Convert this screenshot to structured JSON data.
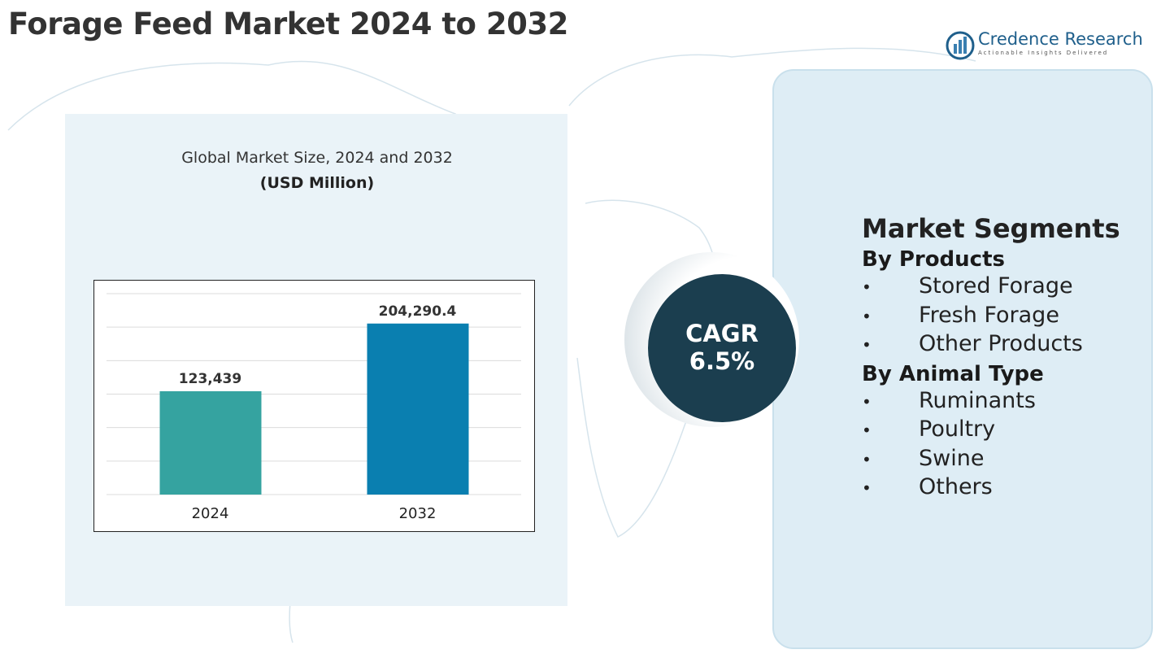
{
  "header": {
    "title": "Forage Feed Market 2024 to 2032"
  },
  "logo": {
    "name": "Credence Research",
    "tagline": "Actionable Insights Delivered"
  },
  "chart_data": {
    "type": "bar",
    "title": "Global Market Size, 2024 and 2032",
    "subtitle": "(USD Million)",
    "categories": [
      "2024",
      "2032"
    ],
    "values": [
      123439,
      204290.4
    ],
    "value_labels": [
      "123,439",
      "204,290.4"
    ],
    "colors": [
      "#35a3a0",
      "#0a7fb0"
    ],
    "ylim": [
      0,
      240000
    ],
    "grid": true
  },
  "cagr": {
    "label": "CAGR",
    "value": "6.5%"
  },
  "segments": {
    "title": "Market Segments",
    "groups": [
      {
        "title": "By Products",
        "items": [
          "Stored Forage",
          "Fresh Forage",
          "Other Products"
        ]
      },
      {
        "title": "By Animal Type",
        "items": [
          "Ruminants",
          "Poultry",
          "Swine",
          "Others"
        ]
      }
    ]
  }
}
